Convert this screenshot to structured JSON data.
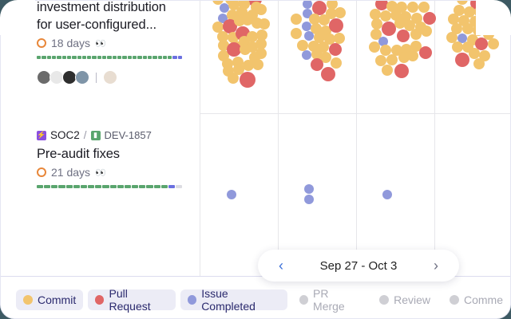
{
  "tasks": [
    {
      "title_line1": "investment distribution",
      "title_line2": "for user-configured...",
      "duration": "18 days",
      "eyes": "👀",
      "progress": {
        "done": 27,
        "review": 2,
        "todo": 0
      },
      "avatars": [
        "#6b6b6b",
        "#e8e8e8",
        "#2e2e2e",
        "#7f95a8"
      ],
      "extra_avatar": "#e8ddd1"
    },
    {
      "project": "SOC2",
      "separator": "/",
      "ticket": "DEV-1857",
      "title": "Pre-audit fixes",
      "duration": "21 days",
      "eyes": "👀",
      "progress": {
        "done": 18,
        "review": 1,
        "todo": 1
      }
    }
  ],
  "date_range": {
    "label": "Sep 27 - Oct 3",
    "prev": "‹",
    "next": "›"
  },
  "legend": [
    {
      "label": "Commit",
      "color": "#f2c46d",
      "active": true
    },
    {
      "label": "Pull Request",
      "color": "#e06666",
      "active": true
    },
    {
      "label": "Issue Completed",
      "color": "#9099db",
      "active": true
    },
    {
      "label": "PR Merge",
      "color": "#cfcfd4",
      "active": false
    },
    {
      "label": "Review",
      "color": "#cfcfd4",
      "active": false
    },
    {
      "label": "Comme",
      "color": "#cfcfd4",
      "active": false
    }
  ],
  "colors": {
    "commit": "#f2c46d",
    "pr": "#e06666",
    "issue": "#9099db",
    "done": "#5aa56e",
    "review": "#6b70e0",
    "todo": "#dcdce2"
  }
}
